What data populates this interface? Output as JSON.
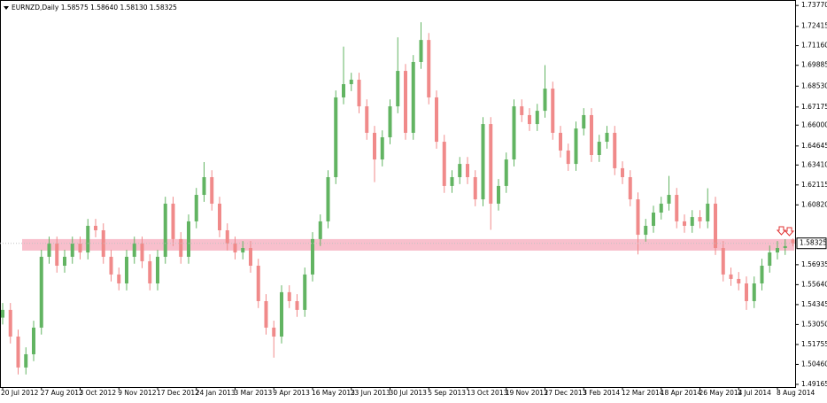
{
  "chart_data": {
    "type": "candlestick",
    "title": "EURNZD,Daily  1.58575 1.58640 1.58130 1.58325",
    "up_color": "#62b462",
    "down_color": "#f08a8a",
    "ylim": [
      1.4899,
      1.7401
    ],
    "yticks": [
      {
        "value": 1.7377,
        "label": "1.73770"
      },
      1.72415,
      {
        "value": 1.7116,
        "label": "1.71160"
      },
      1.69885,
      {
        "value": 1.6853,
        "label": "1.68530"
      },
      1.67175,
      {
        "value": 1.66,
        "label": "1.66000"
      },
      1.64645,
      {
        "value": 1.6341,
        "label": "1.63410"
      },
      1.62115,
      {
        "value": 1.6082,
        "label": "1.60820"
      },
      1.56935,
      {
        "value": 1.5564,
        "label": "1.55640"
      },
      1.54345,
      {
        "value": 1.5305,
        "label": "1.53050"
      },
      1.51755,
      {
        "value": 1.5046,
        "label": "1.50460"
      },
      1.49165
    ],
    "price_label": 1.58325,
    "zone": {
      "low": 1.5785,
      "high": 1.586,
      "color": "#f7b8c6"
    },
    "categories": [
      "20 Jul 2012",
      null,
      null,
      null,
      null,
      "27 Aug 2012",
      null,
      null,
      null,
      null,
      "3 Oct 2012",
      null,
      null,
      null,
      null,
      "9 Nov 2012",
      null,
      null,
      null,
      null,
      "17 Dec 2012",
      null,
      null,
      null,
      null,
      "24 Jan 2013",
      null,
      null,
      null,
      null,
      "3 Mar 2013",
      null,
      null,
      null,
      null,
      "9 Apr 2013",
      null,
      null,
      null,
      null,
      "16 May 2013",
      null,
      null,
      null,
      null,
      "23 Jun 2013",
      null,
      null,
      null,
      null,
      "30 Jul 2013",
      null,
      null,
      null,
      null,
      "5 Sep 2013",
      null,
      null,
      null,
      null,
      "13 Oct 2013",
      null,
      null,
      null,
      null,
      "19 Nov 2013",
      null,
      null,
      null,
      null,
      "27 Dec 2013",
      null,
      null,
      null,
      null,
      "3 Feb 2014",
      null,
      null,
      null,
      null,
      "12 Mar 2014",
      null,
      null,
      null,
      null,
      "18 Apr 2014",
      null,
      null,
      null,
      null,
      "26 May 2014",
      null,
      null,
      null,
      null,
      "2 Jul 2014",
      null,
      null,
      null,
      null,
      "8 Aug 2014",
      null,
      null
    ],
    "open": [
      1.535,
      1.54,
      1.5227,
      1.5026,
      1.5112,
      1.5285,
      1.5745,
      1.5831,
      1.5687,
      1.5745,
      1.5831,
      1.5773,
      1.5946,
      1.5917,
      1.5745,
      1.563,
      1.5572,
      1.5745,
      1.5831,
      1.5716,
      1.5572,
      1.5745,
      1.609,
      1.586,
      1.5745,
      1.5975,
      1.6147,
      1.6262,
      1.609,
      1.5917,
      1.5831,
      1.5773,
      1.5802,
      1.5687,
      1.5457,
      1.5285,
      1.5227,
      1.5515,
      1.5457,
      1.54,
      1.563,
      1.586,
      1.5975,
      1.6262,
      1.678,
      1.6866,
      1.6895,
      1.6722,
      1.655,
      1.6377,
      1.6521,
      1.6722,
      1.6952,
      1.655,
      1.701,
      1.7153,
      1.678,
      1.6492,
      1.6205,
      1.6262,
      1.6348,
      1.6262,
      1.6118,
      1.6607,
      1.609,
      1.6205,
      1.6377,
      1.6722,
      1.6665,
      1.6607,
      1.6693,
      1.6837,
      1.655,
      1.6435,
      1.6348,
      1.6578,
      1.6665,
      1.6406,
      1.6492,
      1.655,
      1.632,
      1.6262,
      1.6118,
      1.5888,
      1.5946,
      1.6032,
      1.609,
      1.6147,
      1.5975,
      1.5946,
      1.6003,
      1.5975,
      1.609,
      1.5802,
      1.563,
      1.5601,
      1.5572,
      1.5457,
      1.5572,
      1.5687,
      1.5773,
      1.5802,
      1.58575
    ],
    "high": [
      1.5445,
      1.5445,
      1.5272,
      1.5157,
      1.533,
      1.579,
      1.5876,
      1.5876,
      1.579,
      1.5876,
      1.5876,
      1.5991,
      1.5991,
      1.5962,
      1.579,
      1.5675,
      1.579,
      1.5876,
      1.5876,
      1.5761,
      1.579,
      1.6135,
      1.6135,
      1.5905,
      1.602,
      1.6192,
      1.636,
      1.6307,
      1.6135,
      1.5962,
      1.5876,
      1.5847,
      1.5847,
      1.5732,
      1.5502,
      1.533,
      1.556,
      1.556,
      1.5502,
      1.5675,
      1.5905,
      1.602,
      1.6307,
      1.6825,
      1.711,
      1.694,
      1.694,
      1.6767,
      1.6595,
      1.6566,
      1.6767,
      1.717,
      1.6997,
      1.7055,
      1.7268,
      1.7198,
      1.6825,
      1.6537,
      1.6307,
      1.6393,
      1.6393,
      1.6307,
      1.6652,
      1.6652,
      1.625,
      1.6422,
      1.6767,
      1.6767,
      1.671,
      1.6738,
      1.699,
      1.6882,
      1.6595,
      1.648,
      1.6623,
      1.671,
      1.671,
      1.6537,
      1.6595,
      1.6595,
      1.6365,
      1.6307,
      1.6163,
      1.5991,
      1.6077,
      1.6135,
      1.627,
      1.6192,
      1.602,
      1.6048,
      1.6048,
      1.619,
      1.6135,
      1.5847,
      1.5675,
      1.5646,
      1.5617,
      1.5617,
      1.5732,
      1.5818,
      1.5847,
      1.5859,
      1.5864
    ],
    "low": [
      1.5305,
      1.5182,
      1.4981,
      1.4981,
      1.5067,
      1.524,
      1.57,
      1.5642,
      1.5642,
      1.57,
      1.5728,
      1.5728,
      1.5872,
      1.57,
      1.5585,
      1.5527,
      1.5527,
      1.57,
      1.5671,
      1.5527,
      1.5527,
      1.57,
      1.5815,
      1.57,
      1.57,
      1.593,
      1.6102,
      1.6045,
      1.5872,
      1.5786,
      1.5728,
      1.5728,
      1.5642,
      1.5412,
      1.524,
      1.509,
      1.5182,
      1.5412,
      1.5355,
      1.5355,
      1.5585,
      1.5815,
      1.593,
      1.6217,
      1.6735,
      1.6821,
      1.6677,
      1.6505,
      1.623,
      1.6332,
      1.6476,
      1.6677,
      1.6505,
      1.6505,
      1.6965,
      1.6735,
      1.6447,
      1.616,
      1.616,
      1.6217,
      1.6217,
      1.6073,
      1.6073,
      1.592,
      1.6045,
      1.616,
      1.6332,
      1.662,
      1.6562,
      1.6562,
      1.6648,
      1.6505,
      1.639,
      1.6303,
      1.6303,
      1.6533,
      1.6361,
      1.6361,
      1.6447,
      1.6275,
      1.6217,
      1.6073,
      1.576,
      1.5843,
      1.5901,
      1.5987,
      1.6045,
      1.593,
      1.5901,
      1.5901,
      1.593,
      1.593,
      1.5757,
      1.5585,
      1.5556,
      1.5527,
      1.54,
      1.5412,
      1.5527,
      1.5642,
      1.5728,
      1.5757,
      1.5813
    ],
    "close": [
      1.54,
      1.5227,
      1.5026,
      1.5112,
      1.5285,
      1.5745,
      1.5831,
      1.5687,
      1.5745,
      1.5831,
      1.5773,
      1.5946,
      1.5917,
      1.5745,
      1.563,
      1.5572,
      1.5745,
      1.5831,
      1.5716,
      1.5572,
      1.5745,
      1.609,
      1.586,
      1.5745,
      1.5975,
      1.6147,
      1.6262,
      1.609,
      1.5917,
      1.5831,
      1.5773,
      1.5802,
      1.5687,
      1.5457,
      1.5285,
      1.5227,
      1.5515,
      1.5457,
      1.54,
      1.563,
      1.586,
      1.5975,
      1.6262,
      1.678,
      1.6866,
      1.6895,
      1.6722,
      1.655,
      1.6377,
      1.6521,
      1.6722,
      1.6952,
      1.655,
      1.701,
      1.7153,
      1.678,
      1.6492,
      1.6205,
      1.6262,
      1.6348,
      1.6262,
      1.6118,
      1.6607,
      1.609,
      1.6205,
      1.6377,
      1.6722,
      1.6665,
      1.6607,
      1.6693,
      1.6837,
      1.655,
      1.6435,
      1.6348,
      1.6578,
      1.6665,
      1.6406,
      1.6492,
      1.655,
      1.632,
      1.6262,
      1.6118,
      1.5888,
      1.5946,
      1.6032,
      1.609,
      1.6147,
      1.5975,
      1.5946,
      1.6003,
      1.5975,
      1.609,
      1.5802,
      1.563,
      1.5601,
      1.5572,
      1.5457,
      1.5572,
      1.5687,
      1.5773,
      1.5802,
      1.5814,
      1.58325
    ]
  }
}
